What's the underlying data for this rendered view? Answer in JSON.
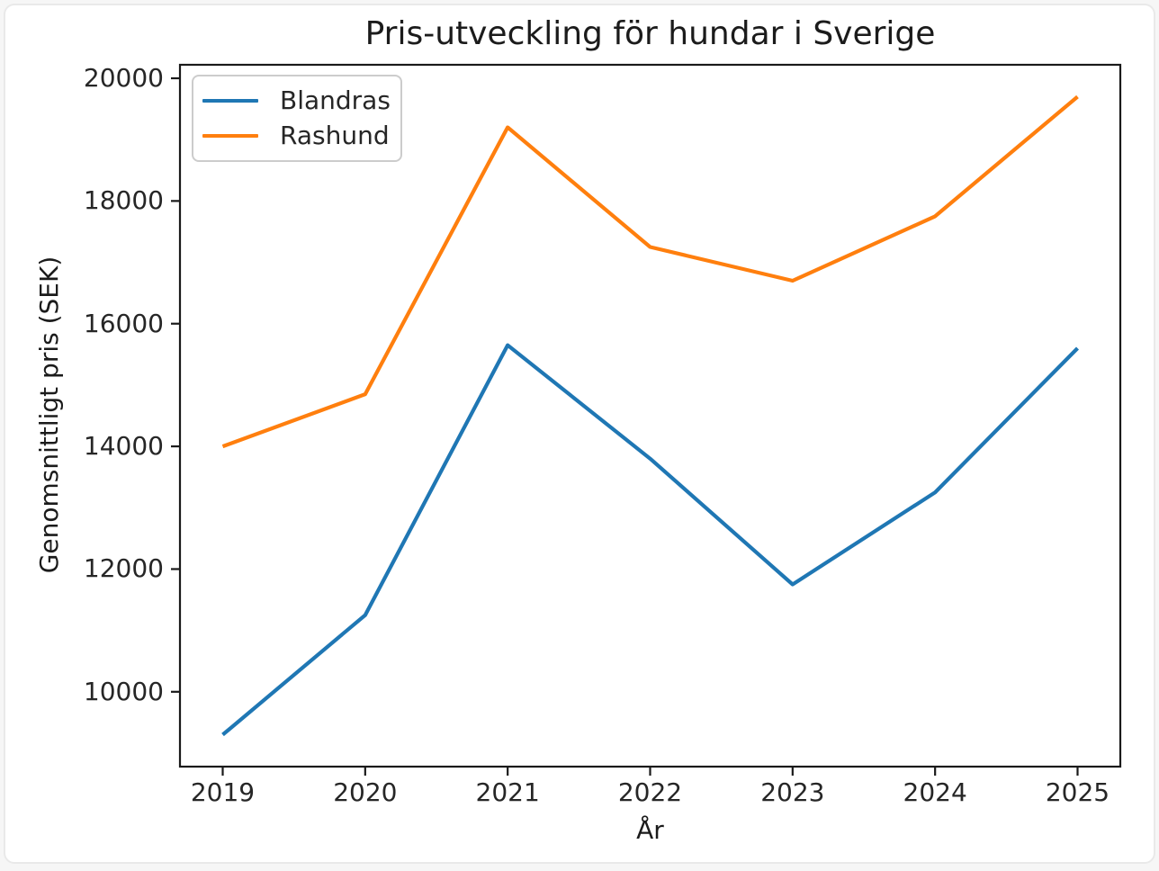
{
  "chart_data": {
    "type": "line",
    "title": "Pris-utveckling för hundar i Sverige",
    "xlabel": "År",
    "ylabel": "Genomsnittligt pris (SEK)",
    "x": [
      2019,
      2020,
      2021,
      2022,
      2023,
      2024,
      2025
    ],
    "series": [
      {
        "name": "Blandras",
        "color": "#1f77b4",
        "values": [
          9300,
          11250,
          15650,
          13800,
          11750,
          13250,
          15600
        ]
      },
      {
        "name": "Rashund",
        "color": "#ff7f0e",
        "values": [
          14000,
          14850,
          19200,
          17250,
          16700,
          17750,
          19700
        ]
      }
    ],
    "xticks": [
      2019,
      2020,
      2021,
      2022,
      2023,
      2024,
      2025
    ],
    "yticks": [
      10000,
      12000,
      14000,
      16000,
      18000,
      20000
    ],
    "xlim": [
      2018.7,
      2025.3
    ],
    "ylim": [
      8780,
      20220
    ],
    "grid": false,
    "legend_position": "upper left",
    "axis_color": "#1a1a1a",
    "tick_label_color": "#262626",
    "line_width": 4.2
  }
}
